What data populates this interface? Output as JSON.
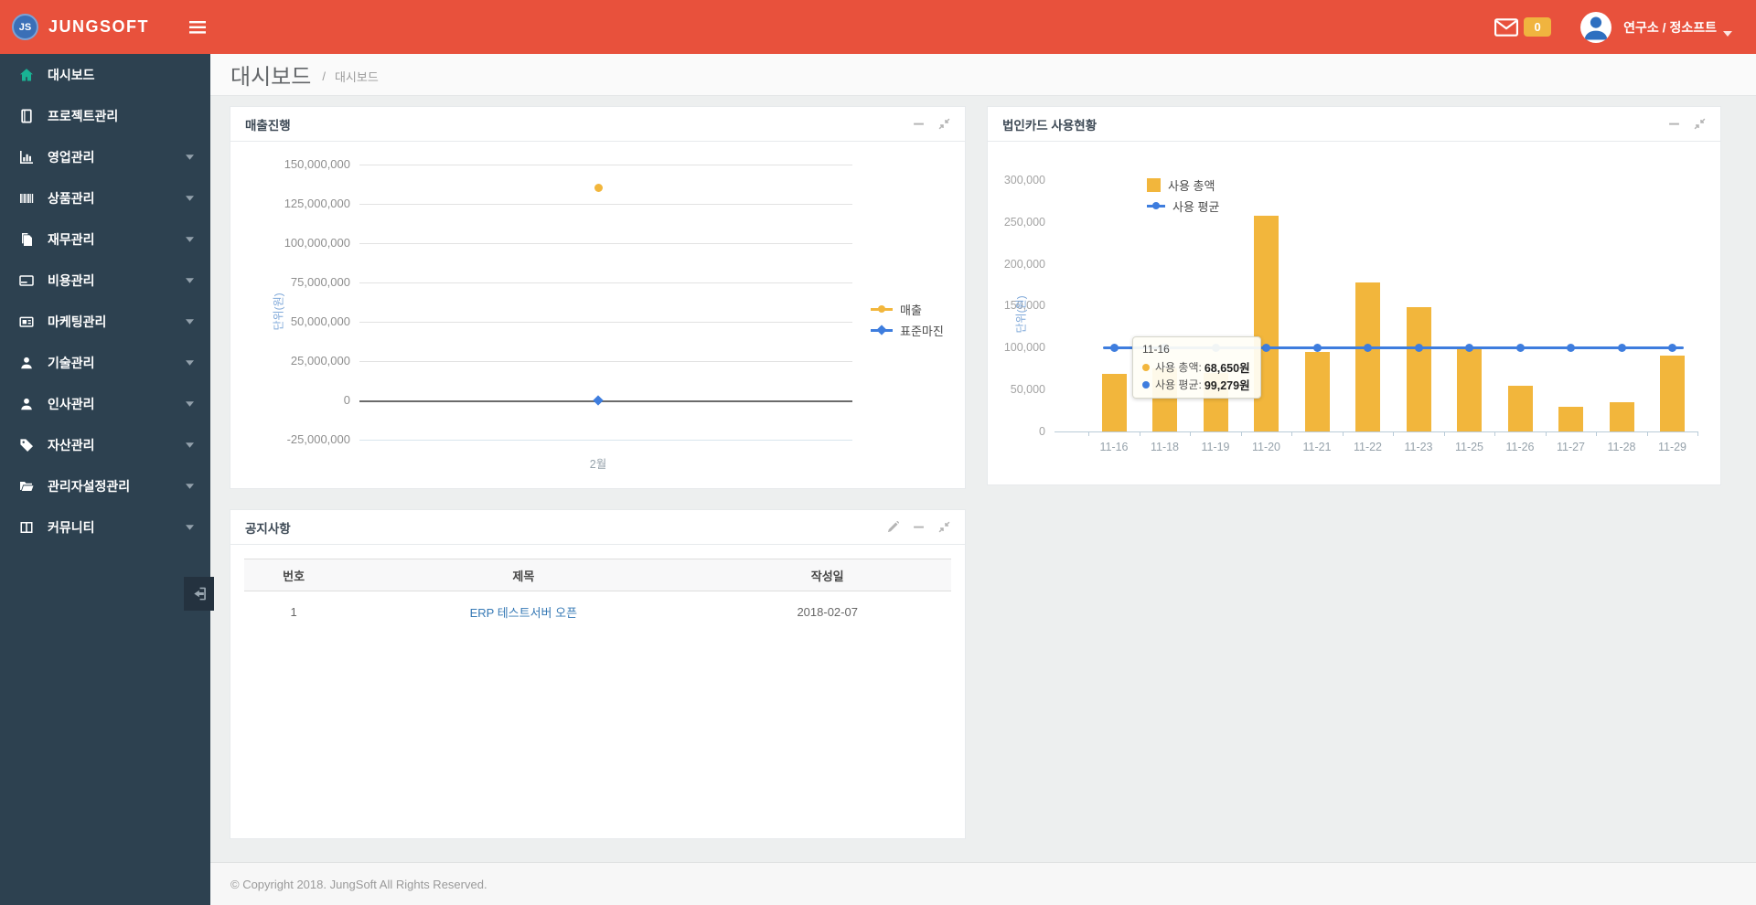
{
  "header": {
    "brand": "JUNGSOFT",
    "logo_initials": "JS",
    "mail_badge": "0",
    "user_label": "연구소 / 정소프트"
  },
  "sidebar": {
    "items": [
      {
        "name": "dashboard",
        "label": "대시보드",
        "icon": "home-icon",
        "active": true,
        "caret": false
      },
      {
        "name": "project-mgmt",
        "label": "프로젝트관리",
        "icon": "book-icon",
        "active": false,
        "caret": false
      },
      {
        "name": "sales-mgmt",
        "label": "영업관리",
        "icon": "bar-chart-icon",
        "active": false,
        "caret": true
      },
      {
        "name": "product-mgmt",
        "label": "상품관리",
        "icon": "barcode-icon",
        "active": false,
        "caret": true
      },
      {
        "name": "finance-mgmt",
        "label": "재무관리",
        "icon": "files-icon",
        "active": false,
        "caret": true
      },
      {
        "name": "expense-mgmt",
        "label": "비용관리",
        "icon": "credit-card-icon",
        "active": false,
        "caret": true
      },
      {
        "name": "marketing-mgmt",
        "label": "마케팅관리",
        "icon": "newspaper-icon",
        "active": false,
        "caret": true
      },
      {
        "name": "tech-mgmt",
        "label": "기술관리",
        "icon": "user-icon",
        "active": false,
        "caret": true
      },
      {
        "name": "hr-mgmt",
        "label": "인사관리",
        "icon": "user-icon",
        "active": false,
        "caret": true
      },
      {
        "name": "asset-mgmt",
        "label": "자산관리",
        "icon": "tag-icon",
        "active": false,
        "caret": true
      },
      {
        "name": "admin-settings",
        "label": "관리자설정관리",
        "icon": "folder-icon",
        "active": false,
        "caret": true
      },
      {
        "name": "community",
        "label": "커뮤니티",
        "icon": "columns-icon",
        "active": false,
        "caret": true
      }
    ]
  },
  "breadcrumb": {
    "title": "대시보드",
    "section": "대시보드",
    "separator": "/"
  },
  "cards": {
    "sales": {
      "title": "매출진행"
    },
    "usage": {
      "title": "법인카드 사용현황"
    },
    "notice": {
      "title": "공지사항",
      "table": {
        "headers": [
          "번호",
          "제목",
          "작성일"
        ],
        "rows": [
          {
            "no": "1",
            "title": "ERP 테스트서버 오픈",
            "date": "2018-02-07"
          }
        ]
      }
    }
  },
  "chart_data": [
    {
      "id": "sales",
      "type": "scatter",
      "title": "매출진행",
      "categories": [
        "2월"
      ],
      "series": [
        {
          "name": "매출",
          "marker": "circle",
          "color": "#F2B63C",
          "values": [
            135000000
          ]
        },
        {
          "name": "표준마진",
          "marker": "diamond",
          "color": "#3E7DDE",
          "values": [
            0
          ]
        }
      ],
      "ylabel": "단위(원)",
      "yticks": [
        150000000,
        125000000,
        100000000,
        75000000,
        50000000,
        25000000,
        0,
        -25000000
      ],
      "ylim": [
        -25000000,
        150000000
      ],
      "grid": true,
      "legend_position": "right"
    },
    {
      "id": "card_usage",
      "type": "bar",
      "title": "법인카드 사용현황",
      "categories": [
        "11-16",
        "11-18",
        "11-19",
        "11-20",
        "11-21",
        "11-22",
        "11-23",
        "11-25",
        "11-26",
        "11-27",
        "11-28",
        "11-29"
      ],
      "series": [
        {
          "name": "사용 총액",
          "type": "bar",
          "color": "#F2B63C",
          "values": [
            68650,
            75000,
            70000,
            258000,
            95000,
            178000,
            148000,
            100000,
            54000,
            29000,
            35000,
            90000
          ]
        },
        {
          "name": "사용 평균",
          "type": "line",
          "color": "#3E7DDE",
          "values": [
            99279,
            99279,
            99279,
            99279,
            99279,
            99279,
            99279,
            99279,
            99279,
            99279,
            99279,
            99279
          ]
        }
      ],
      "ylabel": "단위(원)",
      "yticks": [
        300000,
        250000,
        200000,
        150000,
        100000,
        50000,
        0
      ],
      "ylim": [
        0,
        300000
      ],
      "grid": false,
      "legend_position": "top-left",
      "tooltip": {
        "title": "11-16",
        "rows": [
          {
            "series": "사용 총액",
            "color": "#F2B63C",
            "value": "68,650원"
          },
          {
            "series": "사용 평균",
            "color": "#3E7DDE",
            "value": "99,279원"
          }
        ]
      }
    }
  ],
  "footer": {
    "copyright": "© Copyright 2018. JungSoft All Rights Reserved."
  },
  "colors": {
    "header_red": "#E8513C",
    "sidebar_bg": "#2D4150",
    "active_icon_green": "#19B394",
    "bar_yellow": "#F2B63C",
    "line_blue": "#3E7DDE",
    "link_blue": "#3679B5",
    "badge_yellow": "#F0B43F"
  }
}
